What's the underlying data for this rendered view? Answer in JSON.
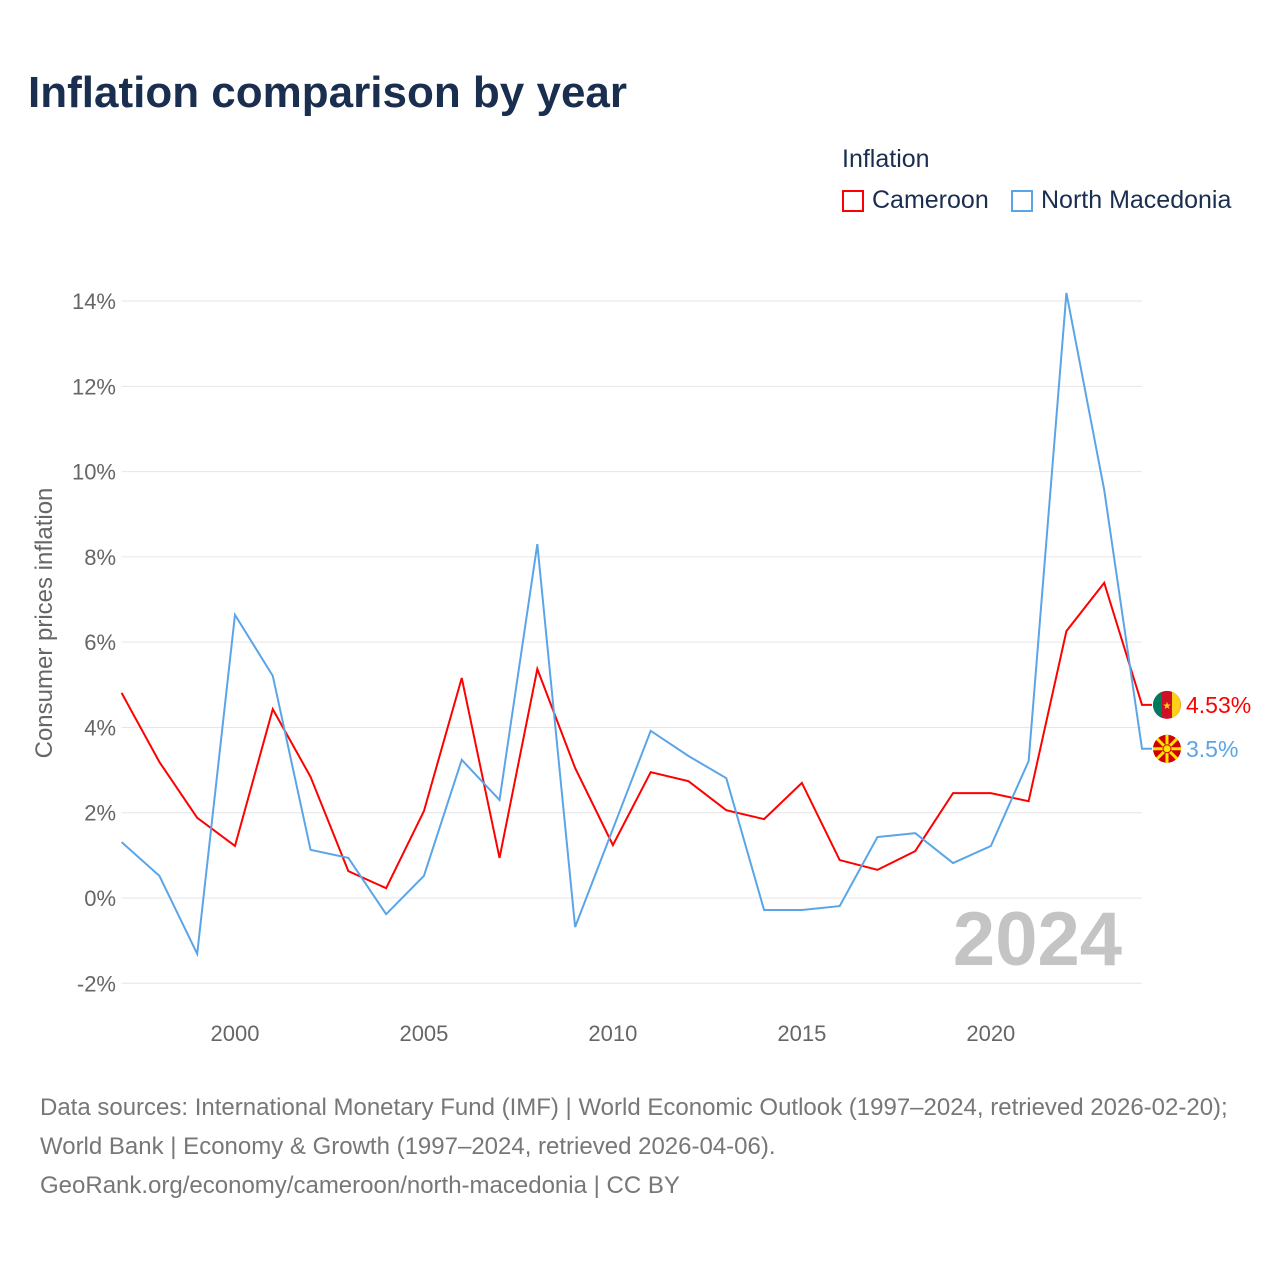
{
  "title": "Inflation comparison by year",
  "legend": {
    "title": "Inflation",
    "items": [
      "Cameroon",
      "North Macedonia"
    ]
  },
  "footer": {
    "sources": "Data sources: International Monetary Fund (IMF) | World Economic Outlook (1997–2024, retrieved 2026-02-20); World Bank | Economy & Growth (1997–2024, retrieved 2026-04-06).",
    "link": "GeoRank.org/economy/cameroon/north-macedonia | CC BY"
  },
  "chart_data": {
    "type": "line",
    "title": "Inflation comparison by year",
    "ylabel": "Consumer prices inflation",
    "ylim": [
      -2,
      14
    ],
    "yticks": [
      -2,
      0,
      2,
      4,
      6,
      8,
      10,
      12,
      14
    ],
    "ytick_labels": [
      "-2%",
      "0%",
      "2%",
      "4%",
      "6%",
      "8%",
      "10%",
      "12%",
      "14%"
    ],
    "xticks": [
      2000,
      2005,
      2010,
      2015,
      2020
    ],
    "xlim": [
      1997,
      2024
    ],
    "year_label": "2024",
    "x": [
      1997,
      1998,
      1999,
      2000,
      2001,
      2002,
      2003,
      2004,
      2005,
      2006,
      2007,
      2008,
      2009,
      2010,
      2011,
      2012,
      2013,
      2014,
      2015,
      2016,
      2017,
      2018,
      2019,
      2020,
      2021,
      2022,
      2023,
      2024
    ],
    "series": [
      {
        "name": "Cameroon",
        "color": "#ff0000",
        "end_label": "4.53%",
        "values": [
          4.81,
          3.19,
          1.88,
          1.22,
          4.43,
          2.84,
          0.63,
          0.23,
          2.04,
          5.16,
          0.94,
          5.37,
          3.05,
          1.24,
          2.95,
          2.74,
          2.06,
          1.85,
          2.7,
          0.89,
          0.66,
          1.1,
          2.46,
          2.46,
          2.27,
          6.26,
          7.39,
          4.53
        ]
      },
      {
        "name": "North Macedonia",
        "color": "#5aa5e8",
        "end_label": "3.5%",
        "values": [
          1.31,
          0.52,
          -1.31,
          6.64,
          5.21,
          1.13,
          0.94,
          -0.38,
          0.52,
          3.24,
          2.3,
          8.3,
          -0.68,
          1.62,
          3.92,
          3.33,
          2.81,
          -0.28,
          -0.28,
          -0.19,
          1.43,
          1.52,
          0.82,
          1.22,
          3.21,
          14.19,
          9.57,
          3.5
        ]
      }
    ]
  }
}
